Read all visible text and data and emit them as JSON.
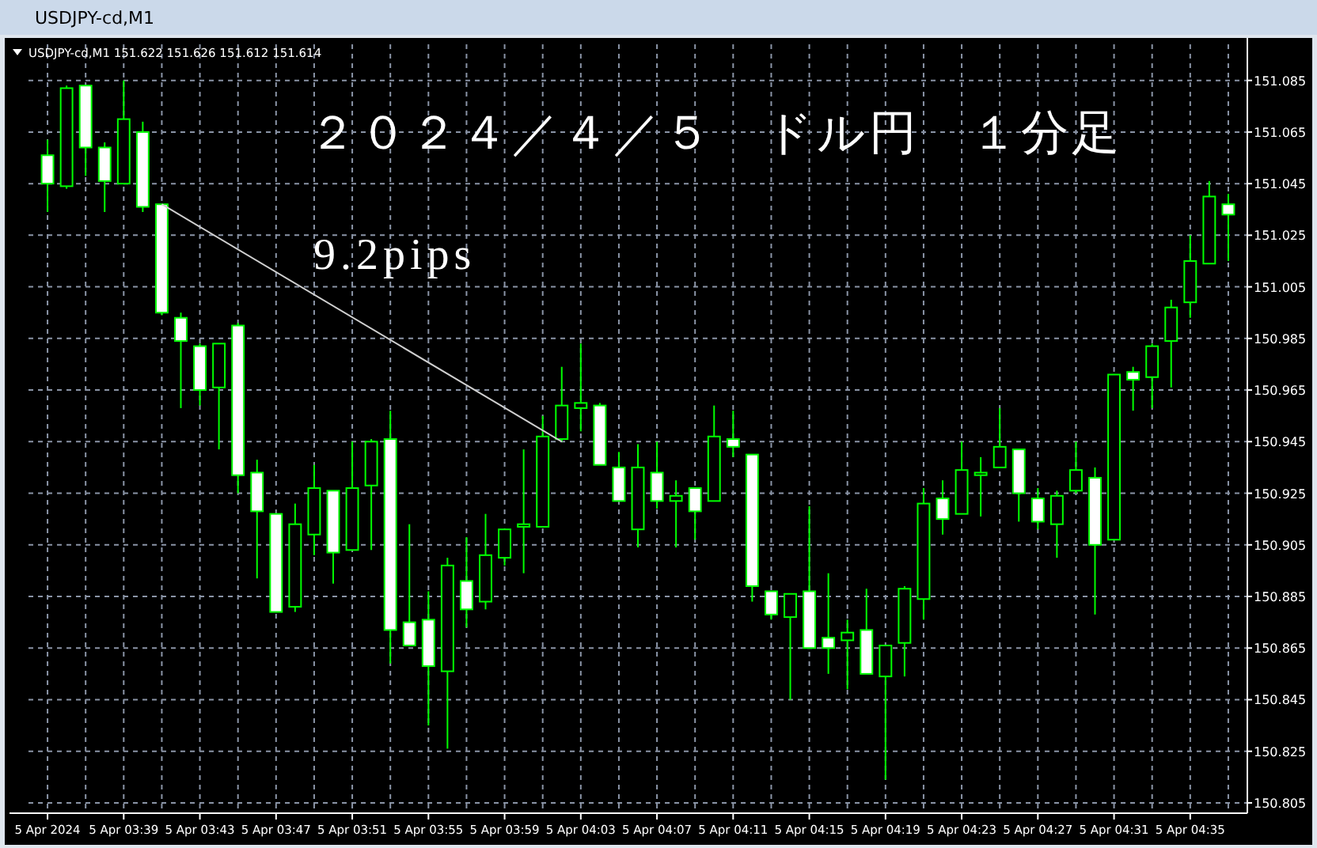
{
  "chart_data": {
    "type": "candlestick",
    "title": "２０２４／４／５　ドル円　１分足",
    "annotations": [
      "USDJPY-cd,M1",
      "USDJPY-cd,M1  151.622 151.626 151.612 151.614",
      "9.2pips"
    ],
    "x": [
      "2024-04-05T03:35",
      "2024-04-05T03:36",
      "2024-04-05T03:37",
      "2024-04-05T03:38",
      "2024-04-05T03:39",
      "2024-04-05T03:40",
      "2024-04-05T03:41",
      "2024-04-05T03:42",
      "2024-04-05T03:43",
      "2024-04-05T03:44",
      "2024-04-05T03:45",
      "2024-04-05T03:46",
      "2024-04-05T03:47",
      "2024-04-05T03:48",
      "2024-04-05T03:49",
      "2024-04-05T03:50",
      "2024-04-05T03:51",
      "2024-04-05T03:52",
      "2024-04-05T03:53",
      "2024-04-05T03:54",
      "2024-04-05T03:55",
      "2024-04-05T03:56",
      "2024-04-05T03:57",
      "2024-04-05T03:58",
      "2024-04-05T03:59",
      "2024-04-05T04:00",
      "2024-04-05T04:01",
      "2024-04-05T04:02",
      "2024-04-05T04:03",
      "2024-04-05T04:04",
      "2024-04-05T04:05",
      "2024-04-05T04:06",
      "2024-04-05T04:07",
      "2024-04-05T04:08",
      "2024-04-05T04:09",
      "2024-04-05T04:10",
      "2024-04-05T04:11",
      "2024-04-05T04:12",
      "2024-04-05T04:13",
      "2024-04-05T04:14",
      "2024-04-05T04:15",
      "2024-04-05T04:16",
      "2024-04-05T04:17",
      "2024-04-05T04:18",
      "2024-04-05T04:19",
      "2024-04-05T04:20",
      "2024-04-05T04:21",
      "2024-04-05T04:22",
      "2024-04-05T04:23",
      "2024-04-05T04:24",
      "2024-04-05T04:25",
      "2024-04-05T04:26",
      "2024-04-05T04:27",
      "2024-04-05T04:28",
      "2024-04-05T04:29",
      "2024-04-05T04:30",
      "2024-04-05T04:31",
      "2024-04-05T04:32",
      "2024-04-05T04:33",
      "2024-04-05T04:34",
      "2024-04-05T04:35",
      "2024-04-05T04:36",
      "2024-04-05T04:37"
    ],
    "ohlc": [
      [
        151.056,
        151.062,
        151.034,
        151.045
      ],
      [
        151.044,
        151.083,
        151.043,
        151.082
      ],
      [
        151.083,
        151.083,
        151.048,
        151.059
      ],
      [
        151.059,
        151.061,
        151.034,
        151.046
      ],
      [
        151.045,
        151.085,
        151.045,
        151.07
      ],
      [
        151.065,
        151.069,
        151.034,
        151.036
      ],
      [
        151.037,
        151.037,
        150.994,
        150.995
      ],
      [
        150.993,
        150.995,
        150.958,
        150.984
      ],
      [
        150.982,
        150.983,
        150.959,
        150.965
      ],
      [
        150.966,
        150.983,
        150.942,
        150.983
      ],
      [
        150.99,
        150.991,
        150.925,
        150.932
      ],
      [
        150.933,
        150.938,
        150.892,
        150.918
      ],
      [
        150.917,
        150.917,
        150.879,
        150.879
      ],
      [
        150.881,
        150.921,
        150.879,
        150.913
      ],
      [
        150.909,
        150.936,
        150.901,
        150.927
      ],
      [
        150.926,
        150.926,
        150.89,
        150.902
      ],
      [
        150.903,
        150.945,
        150.903,
        150.927
      ],
      [
        150.928,
        150.946,
        150.903,
        150.945
      ],
      [
        150.946,
        150.957,
        150.859,
        150.872
      ],
      [
        150.875,
        150.913,
        150.866,
        150.866
      ],
      [
        150.876,
        150.887,
        150.835,
        150.858
      ],
      [
        150.856,
        150.9,
        150.826,
        150.897
      ],
      [
        150.891,
        150.908,
        150.873,
        150.88
      ],
      [
        150.883,
        150.917,
        150.88,
        150.901
      ],
      [
        150.9,
        150.911,
        150.897,
        150.911
      ],
      [
        150.912,
        150.942,
        150.894,
        150.913
      ],
      [
        150.912,
        150.955,
        150.912,
        150.947
      ],
      [
        150.946,
        150.974,
        150.945,
        150.959
      ],
      [
        150.958,
        150.983,
        150.949,
        150.96
      ],
      [
        150.959,
        150.96,
        150.936,
        150.936
      ],
      [
        150.935,
        150.941,
        150.922,
        150.922
      ],
      [
        150.911,
        150.944,
        150.904,
        150.935
      ],
      [
        150.933,
        150.945,
        150.919,
        150.922
      ],
      [
        150.922,
        150.93,
        150.904,
        150.924
      ],
      [
        150.927,
        150.927,
        150.907,
        150.918
      ],
      [
        150.922,
        150.959,
        150.922,
        150.947
      ],
      [
        150.946,
        150.957,
        150.939,
        150.943
      ],
      [
        150.94,
        150.94,
        150.883,
        150.889
      ],
      [
        150.887,
        150.887,
        150.876,
        150.878
      ],
      [
        150.877,
        150.886,
        150.845,
        150.886
      ],
      [
        150.887,
        150.92,
        150.865,
        150.865
      ],
      [
        150.869,
        150.894,
        150.855,
        150.865
      ],
      [
        150.868,
        150.876,
        150.849,
        150.871
      ],
      [
        150.872,
        150.888,
        150.855,
        150.855
      ],
      [
        150.854,
        150.866,
        150.814,
        150.866
      ],
      [
        150.867,
        150.889,
        150.854,
        150.888
      ],
      [
        150.884,
        150.927,
        150.876,
        150.921
      ],
      [
        150.923,
        150.93,
        150.909,
        150.915
      ],
      [
        150.917,
        150.945,
        150.917,
        150.934
      ],
      [
        150.932,
        150.939,
        150.916,
        150.933
      ],
      [
        150.935,
        150.958,
        150.935,
        150.943
      ],
      [
        150.942,
        150.942,
        150.914,
        150.925
      ],
      [
        150.923,
        150.927,
        150.911,
        150.914
      ],
      [
        150.913,
        150.926,
        150.9,
        150.924
      ],
      [
        150.926,
        150.945,
        150.925,
        150.934
      ],
      [
        150.931,
        150.935,
        150.878,
        150.905
      ],
      [
        150.907,
        150.971,
        150.907,
        150.971
      ],
      [
        150.972,
        150.974,
        150.957,
        150.969
      ],
      [
        150.97,
        150.983,
        150.958,
        150.982
      ],
      [
        150.984,
        151.0,
        150.966,
        150.997
      ],
      [
        150.999,
        151.025,
        150.993,
        151.015
      ],
      [
        151.014,
        151.046,
        151.014,
        151.04
      ],
      [
        151.037,
        151.041,
        151.015,
        151.033
      ]
    ],
    "color": "#00ff00",
    "series": [
      {
        "type": "line",
        "x": [
          "2024-04-05T03:41",
          "2024-04-05T04:02"
        ],
        "values": [
          151.037,
          150.945
        ],
        "color": "#d0d0d0"
      }
    ],
    "xlim": [
      "2024-04-05T03:34",
      "2024-04-05T04:38"
    ],
    "xticks": [
      {
        "value": "2024-04-05T03:35",
        "label": "5 Apr 2024"
      },
      {
        "value": "2024-04-05T03:37",
        "label": null
      },
      {
        "value": "2024-04-05T03:39",
        "label": "5 Apr 03:39"
      },
      {
        "value": "2024-04-05T03:41",
        "label": null
      },
      {
        "value": "2024-04-05T03:43",
        "label": "5 Apr 03:43"
      },
      {
        "value": "2024-04-05T03:45",
        "label": null
      },
      {
        "value": "2024-04-05T03:47",
        "label": "5 Apr 03:47"
      },
      {
        "value": "2024-04-05T03:49",
        "label": null
      },
      {
        "value": "2024-04-05T03:51",
        "label": "5 Apr 03:51"
      },
      {
        "value": "2024-04-05T03:53",
        "label": null
      },
      {
        "value": "2024-04-05T03:55",
        "label": "5 Apr 03:55"
      },
      {
        "value": "2024-04-05T03:57",
        "label": null
      },
      {
        "value": "2024-04-05T03:59",
        "label": "5 Apr 03:59"
      },
      {
        "value": "2024-04-05T04:01",
        "label": null
      },
      {
        "value": "2024-04-05T04:03",
        "label": "5 Apr 04:03"
      },
      {
        "value": "2024-04-05T04:05",
        "label": null
      },
      {
        "value": "2024-04-05T04:07",
        "label": "5 Apr 04:07"
      },
      {
        "value": "2024-04-05T04:09",
        "label": null
      },
      {
        "value": "2024-04-05T04:11",
        "label": "5 Apr 04:11"
      },
      {
        "value": "2024-04-05T04:13",
        "label": null
      },
      {
        "value": "2024-04-05T04:15",
        "label": "5 Apr 04:15"
      },
      {
        "value": "2024-04-05T04:17",
        "label": null
      },
      {
        "value": "2024-04-05T04:19",
        "label": "5 Apr 04:19"
      },
      {
        "value": "2024-04-05T04:21",
        "label": null
      },
      {
        "value": "2024-04-05T04:23",
        "label": "5 Apr 04:23"
      },
      {
        "value": "2024-04-05T04:25",
        "label": null
      },
      {
        "value": "2024-04-05T04:27",
        "label": "5 Apr 04:27"
      },
      {
        "value": "2024-04-05T04:29",
        "label": null
      },
      {
        "value": "2024-04-05T04:31",
        "label": "5 Apr 04:31"
      },
      {
        "value": "2024-04-05T04:33",
        "label": null
      },
      {
        "value": "2024-04-05T04:35",
        "label": "5 Apr 04:35"
      },
      {
        "value": "2024-04-05T04:37",
        "label": null
      }
    ],
    "ylim": [
      150.801,
      151.099
    ],
    "yticks": [
      150.805,
      150.825,
      150.845,
      150.865,
      150.885,
      150.905,
      150.925,
      150.945,
      150.965,
      150.985,
      151.005,
      151.025,
      151.045,
      151.065,
      151.085
    ],
    "grid": true
  }
}
